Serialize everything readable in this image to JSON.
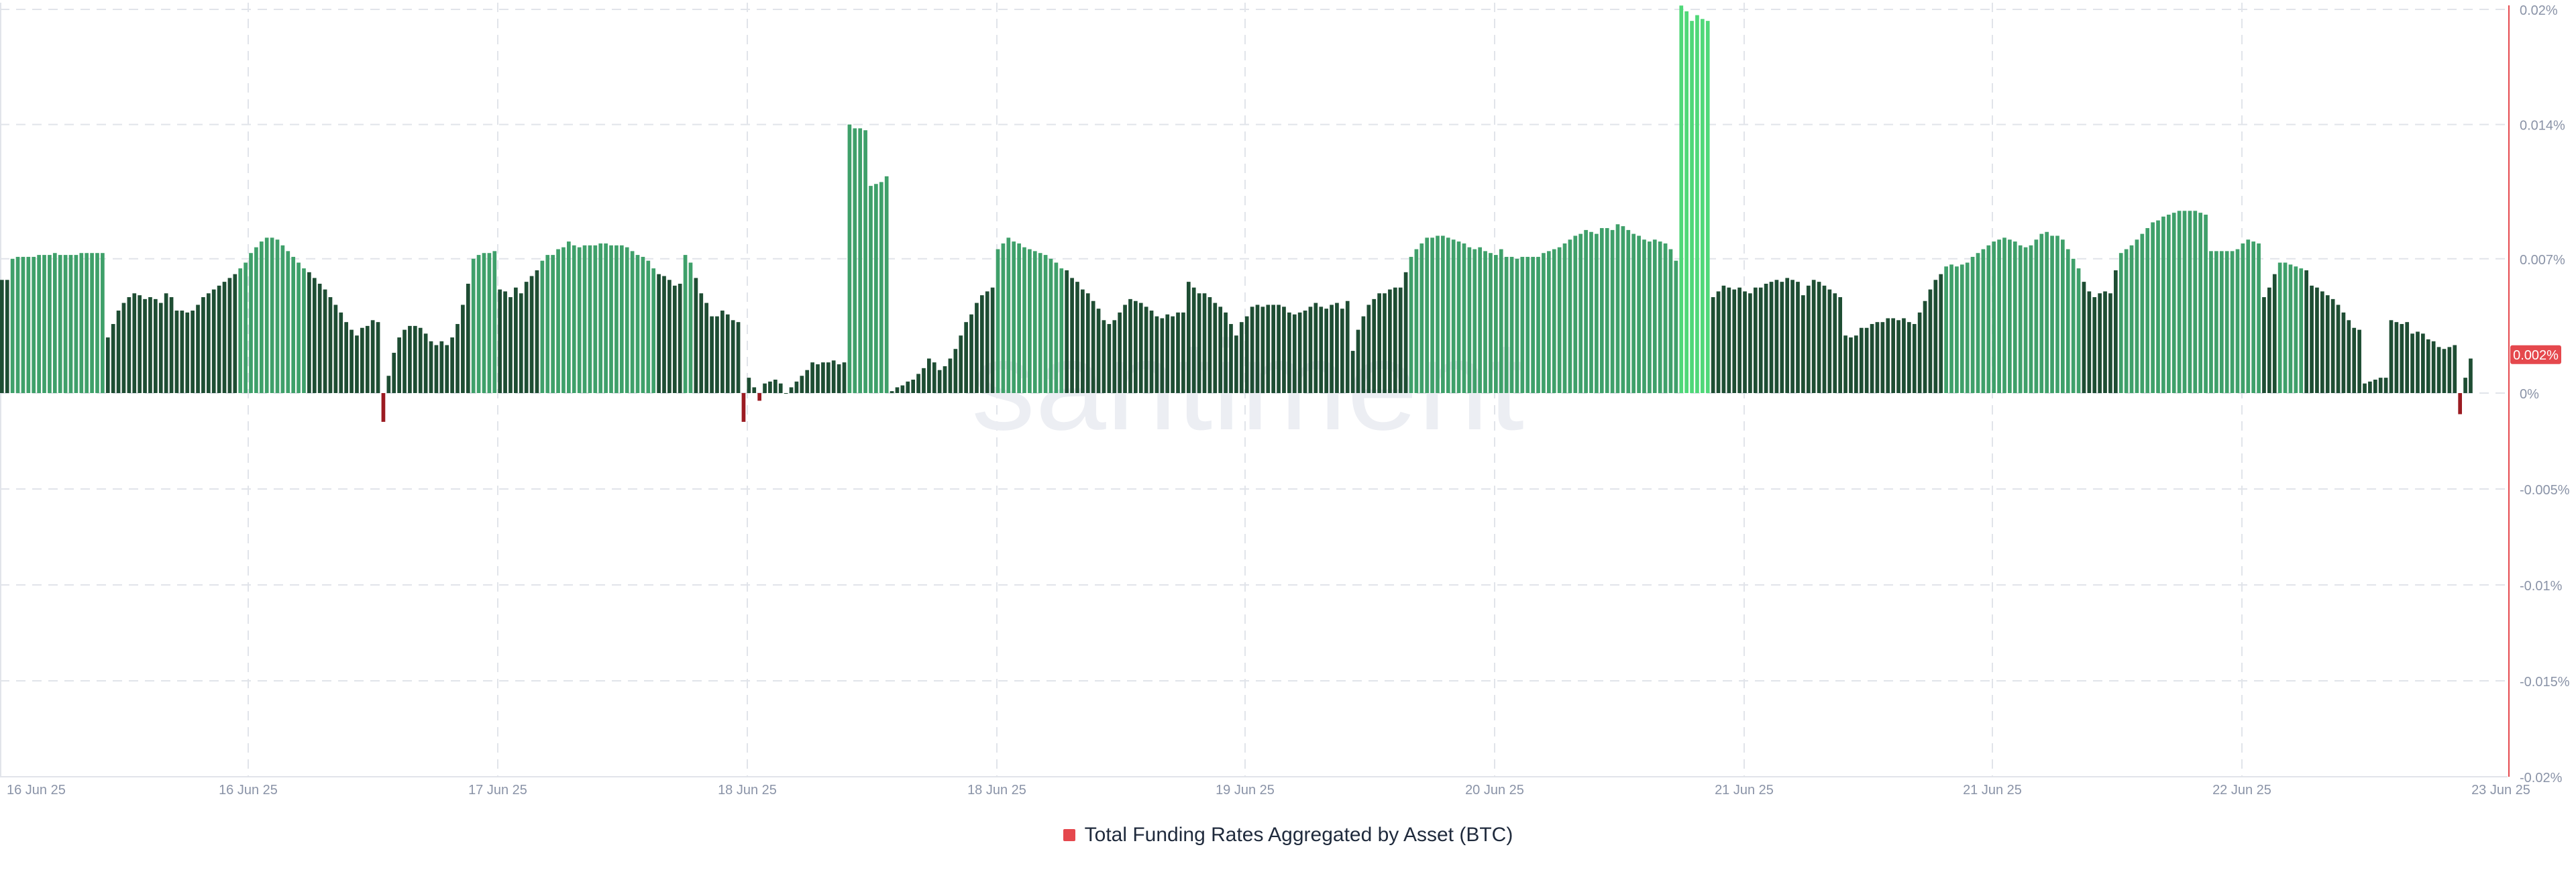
{
  "watermark": "santiment",
  "colors": {
    "positive_dark": "#1e4d33",
    "positive_mid": "#3fa06a",
    "positive_bright": "#4fd878",
    "negative": "#9b1b22",
    "axis_line": "#e5484d",
    "current_badge": "#e5484d",
    "grid": "#e1e4ea",
    "tick_text": "#8a93a7",
    "watermark": "#eceef3"
  },
  "chart_data": {
    "type": "bar",
    "title": "",
    "xlabel": "",
    "ylabel": "",
    "ylim": [
      -0.02,
      0.02
    ],
    "y_ticks": [
      0.02,
      0.014,
      0.007,
      0,
      -0.005,
      -0.01,
      -0.015,
      -0.02
    ],
    "y_tick_labels": [
      "0.02%",
      "0.014%",
      "0.007%",
      "0%",
      "-0.005%",
      "-0.01%",
      "-0.015%",
      "-0.02%"
    ],
    "x_tick_labels": [
      "16 Jun 25",
      "16 Jun 25",
      "17 Jun 25",
      "18 Jun 25",
      "18 Jun 25",
      "19 Jun 25",
      "20 Jun 25",
      "21 Jun 25",
      "21 Jun 25",
      "22 Jun 25",
      "23 Jun 25"
    ],
    "current_value_label": "0.002%",
    "current_value": 0.002,
    "grid": true,
    "legend_position": "bottom-center",
    "series": [
      {
        "name": "Total Funding Rates Aggregated by Asset (BTC)",
        "color": "#e5484d",
        "values": [
          0.0059,
          0.0059,
          0.007,
          0.0071,
          0.0071,
          0.0071,
          0.0071,
          0.0072,
          0.0072,
          0.0072,
          0.0073,
          0.0072,
          0.0072,
          0.0072,
          0.0072,
          0.0073,
          0.0073,
          0.0073,
          0.0073,
          0.0073,
          0.0029,
          0.0036,
          0.0043,
          0.0047,
          0.005,
          0.0052,
          0.0051,
          0.0049,
          0.005,
          0.0049,
          0.0047,
          0.0052,
          0.005,
          0.0043,
          0.0043,
          0.0042,
          0.0043,
          0.0046,
          0.005,
          0.0052,
          0.0054,
          0.0056,
          0.0058,
          0.006,
          0.0062,
          0.0065,
          0.0068,
          0.0073,
          0.0076,
          0.0079,
          0.0081,
          0.0081,
          0.008,
          0.0077,
          0.0074,
          0.0071,
          0.0068,
          0.0065,
          0.0063,
          0.006,
          0.0057,
          0.0054,
          0.005,
          0.0046,
          0.0042,
          0.0037,
          0.0033,
          0.003,
          0.0034,
          0.0035,
          0.0038,
          0.0037,
          -0.0015,
          0.0009,
          0.0021,
          0.0029,
          0.0033,
          0.0035,
          0.0035,
          0.0034,
          0.0031,
          0.0027,
          0.0025,
          0.0027,
          0.0025,
          0.0029,
          0.0036,
          0.0046,
          0.0057,
          0.007,
          0.0072,
          0.0073,
          0.0073,
          0.0074,
          0.0054,
          0.0053,
          0.005,
          0.0055,
          0.0052,
          0.0058,
          0.0061,
          0.0064,
          0.0069,
          0.0072,
          0.0072,
          0.0075,
          0.0076,
          0.0079,
          0.0077,
          0.0076,
          0.0077,
          0.0077,
          0.0077,
          0.0078,
          0.0078,
          0.0077,
          0.0077,
          0.0077,
          0.0076,
          0.0074,
          0.0072,
          0.0071,
          0.0069,
          0.0065,
          0.0062,
          0.0061,
          0.0059,
          0.0056,
          0.0057,
          0.0072,
          0.0068,
          0.006,
          0.0052,
          0.0047,
          0.004,
          0.004,
          0.0043,
          0.0041,
          0.0038,
          0.0037,
          -0.0015,
          0.0008,
          0.0003,
          -0.0004,
          0.0005,
          0.0006,
          0.0007,
          0.0005,
          0.0,
          0.0003,
          0.0006,
          0.0009,
          0.0012,
          0.0016,
          0.0015,
          0.0016,
          0.0016,
          0.0017,
          0.0015,
          0.0016,
          0.014,
          0.0138,
          0.0138,
          0.0137,
          0.0108,
          0.0109,
          0.011,
          0.0113,
          0.0001,
          0.0003,
          0.0004,
          0.0006,
          0.0007,
          0.001,
          0.0013,
          0.0018,
          0.0016,
          0.0012,
          0.0014,
          0.0018,
          0.0023,
          0.003,
          0.0037,
          0.0041,
          0.0047,
          0.0051,
          0.0053,
          0.0055,
          0.0075,
          0.0078,
          0.0081,
          0.0079,
          0.0078,
          0.0076,
          0.0075,
          0.0074,
          0.0073,
          0.0072,
          0.007,
          0.0068,
          0.0065,
          0.0064,
          0.006,
          0.0058,
          0.0054,
          0.0052,
          0.0048,
          0.0044,
          0.0038,
          0.0036,
          0.0038,
          0.0042,
          0.0046,
          0.0049,
          0.0048,
          0.0047,
          0.0045,
          0.0043,
          0.004,
          0.0039,
          0.0041,
          0.004,
          0.0042,
          0.0042,
          0.0058,
          0.0055,
          0.0052,
          0.0052,
          0.005,
          0.0047,
          0.0045,
          0.0042,
          0.0036,
          0.003,
          0.0037,
          0.004,
          0.0045,
          0.0046,
          0.0045,
          0.0046,
          0.0046,
          0.0046,
          0.0045,
          0.0042,
          0.0041,
          0.0042,
          0.0043,
          0.0045,
          0.0047,
          0.0045,
          0.0044,
          0.0046,
          0.0047,
          0.0044,
          0.0048,
          0.0022,
          0.0033,
          0.004,
          0.0046,
          0.0049,
          0.0052,
          0.0052,
          0.0054,
          0.0055,
          0.0055,
          0.0063,
          0.0071,
          0.0075,
          0.0078,
          0.0081,
          0.0081,
          0.0082,
          0.0082,
          0.0081,
          0.008,
          0.0079,
          0.0078,
          0.0076,
          0.0075,
          0.0076,
          0.0074,
          0.0073,
          0.0072,
          0.0075,
          0.0071,
          0.0071,
          0.007,
          0.0071,
          0.0071,
          0.0071,
          0.0071,
          0.0073,
          0.0074,
          0.0075,
          0.0076,
          0.0078,
          0.008,
          0.0082,
          0.0083,
          0.0085,
          0.0084,
          0.0083,
          0.0086,
          0.0086,
          0.0085,
          0.0088,
          0.0087,
          0.0085,
          0.0083,
          0.0082,
          0.008,
          0.0079,
          0.008,
          0.0079,
          0.0078,
          0.0075,
          0.0069,
          0.0202,
          0.0199,
          0.0194,
          0.0197,
          0.0195,
          0.0194,
          0.005,
          0.0053,
          0.0056,
          0.0055,
          0.0054,
          0.0055,
          0.0053,
          0.0052,
          0.0055,
          0.0055,
          0.0057,
          0.0058,
          0.0059,
          0.0058,
          0.006,
          0.0059,
          0.0058,
          0.0051,
          0.0056,
          0.0059,
          0.0058,
          0.0056,
          0.0054,
          0.0052,
          0.005,
          0.003,
          0.0029,
          0.003,
          0.0034,
          0.0034,
          0.0036,
          0.0037,
          0.0037,
          0.0039,
          0.0039,
          0.0038,
          0.0039,
          0.0037,
          0.0036,
          0.0042,
          0.0048,
          0.0054,
          0.0059,
          0.0062,
          0.0066,
          0.0067,
          0.0066,
          0.0067,
          0.0068,
          0.0071,
          0.0073,
          0.0075,
          0.0077,
          0.0079,
          0.008,
          0.0081,
          0.008,
          0.0079,
          0.0077,
          0.0076,
          0.0077,
          0.008,
          0.0083,
          0.0084,
          0.0082,
          0.0082,
          0.008,
          0.0075,
          0.007,
          0.0065,
          0.0058,
          0.0053,
          0.005,
          0.0052,
          0.0053,
          0.0052,
          0.0064,
          0.0073,
          0.0075,
          0.0077,
          0.008,
          0.0083,
          0.0086,
          0.0089,
          0.009,
          0.0092,
          0.0093,
          0.0094,
          0.0095,
          0.0095,
          0.0095,
          0.0095,
          0.0094,
          0.0093,
          0.0074,
          0.0074,
          0.0074,
          0.0074,
          0.0074,
          0.0075,
          0.0078,
          0.008,
          0.0079,
          0.0078,
          0.005,
          0.0055,
          0.0062,
          0.0068,
          0.0068,
          0.0067,
          0.0066,
          0.0065,
          0.0064,
          0.0056,
          0.0055,
          0.0053,
          0.0051,
          0.0049,
          0.0046,
          0.0042,
          0.0038,
          0.0034,
          0.0033,
          0.0005,
          0.0006,
          0.0007,
          0.0008,
          0.0008,
          0.0038,
          0.0037,
          0.0036,
          0.0037,
          0.0031,
          0.0032,
          0.0031,
          0.0028,
          0.0027,
          0.0024,
          0.0023,
          0.0024,
          0.0025,
          -0.0011,
          0.0008,
          0.0018
        ]
      }
    ]
  }
}
